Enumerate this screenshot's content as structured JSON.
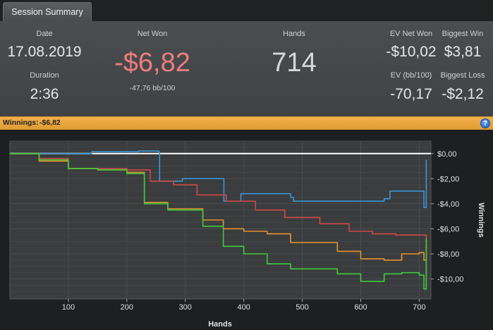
{
  "tab": {
    "label": "Session Summary"
  },
  "summary": {
    "date_label": "Date",
    "date_value": "17.08.2019",
    "duration_label": "Duration",
    "duration_value": "2:36",
    "net_won_label": "Net Won",
    "net_won_value": "-$6,82",
    "net_won_sub": "-47,76 bb/100",
    "hands_label": "Hands",
    "hands_value": "714",
    "ev_net_won_label": "EV Net Won",
    "ev_net_won_value": "-$10,02",
    "biggest_win_label": "Biggest Win",
    "biggest_win_value": "$3,81",
    "ev_bb_label": "EV (bb/100)",
    "ev_bb_value": "-70,17",
    "biggest_loss_label": "Biggest Loss",
    "biggest_loss_value": "-$2,12"
  },
  "winnings_bar": {
    "label": "Winnings:",
    "value": "-$6,82",
    "help_icon": "?"
  },
  "colors": {
    "net_won": "#f07c7c",
    "blue": "#3a96d8",
    "red": "#d24848",
    "orange": "#e8922e",
    "green": "#3ecb3e",
    "zero_line": "#ffffff"
  },
  "chart_data": {
    "type": "line",
    "xlabel": "Hands",
    "ylabel": "Winnings",
    "xlim": [
      0,
      720
    ],
    "ylim": [
      -11.6,
      1.0
    ],
    "x_ticks": [
      100,
      200,
      300,
      400,
      500,
      600,
      700
    ],
    "x_tick_labels": [
      "100",
      "200",
      "300",
      "400",
      "500",
      "600",
      "700"
    ],
    "y_ticks": [
      0,
      -2,
      -4,
      -6,
      -8,
      -10
    ],
    "y_tick_labels": [
      "$0,00",
      "-$2,00",
      "-$4,00",
      "-$6,00",
      "-$8,00",
      "-$10,00"
    ],
    "grid": true,
    "series": [
      {
        "color": "blue",
        "values": [
          [
            0,
            0.0
          ],
          [
            130,
            0.0
          ],
          [
            140,
            0.15
          ],
          [
            220,
            0.2
          ],
          [
            255,
            0.1
          ],
          [
            256,
            -2.2
          ],
          [
            295,
            -2.0
          ],
          [
            360,
            -2.0
          ],
          [
            366,
            -3.8
          ],
          [
            395,
            -3.2
          ],
          [
            480,
            -3.5
          ],
          [
            485,
            -3.8
          ],
          [
            640,
            -3.6
          ],
          [
            650,
            -3.0
          ],
          [
            700,
            -3.0
          ],
          [
            708,
            -4.3
          ],
          [
            712,
            -0.5
          ]
        ]
      },
      {
        "color": "red",
        "values": [
          [
            0,
            0.0
          ],
          [
            50,
            -0.4
          ],
          [
            100,
            -1.2
          ],
          [
            150,
            -1.2
          ],
          [
            200,
            -1.3
          ],
          [
            240,
            -2.2
          ],
          [
            280,
            -2.5
          ],
          [
            320,
            -3.3
          ],
          [
            370,
            -3.8
          ],
          [
            420,
            -4.5
          ],
          [
            470,
            -5.1
          ],
          [
            530,
            -5.6
          ],
          [
            580,
            -6.2
          ],
          [
            620,
            -6.4
          ],
          [
            660,
            -6.5
          ],
          [
            712,
            -6.8
          ]
        ]
      },
      {
        "color": "orange",
        "values": [
          [
            0,
            0.0
          ],
          [
            50,
            -0.6
          ],
          [
            100,
            -1.2
          ],
          [
            150,
            -1.3
          ],
          [
            200,
            -1.5
          ],
          [
            230,
            -3.9
          ],
          [
            270,
            -4.4
          ],
          [
            330,
            -5.3
          ],
          [
            365,
            -6.0
          ],
          [
            400,
            -6.2
          ],
          [
            440,
            -6.4
          ],
          [
            480,
            -7.1
          ],
          [
            560,
            -7.8
          ],
          [
            600,
            -8.4
          ],
          [
            640,
            -8.5
          ],
          [
            670,
            -8.0
          ],
          [
            700,
            -7.9
          ],
          [
            708,
            -8.5
          ],
          [
            712,
            -6.8
          ]
        ]
      },
      {
        "color": "green",
        "values": [
          [
            0,
            0.0
          ],
          [
            50,
            -0.5
          ],
          [
            100,
            -1.2
          ],
          [
            150,
            -1.3
          ],
          [
            200,
            -1.6
          ],
          [
            230,
            -4.0
          ],
          [
            270,
            -4.5
          ],
          [
            330,
            -5.8
          ],
          [
            365,
            -7.4
          ],
          [
            400,
            -8.0
          ],
          [
            440,
            -8.8
          ],
          [
            480,
            -9.2
          ],
          [
            560,
            -9.6
          ],
          [
            600,
            -10.2
          ],
          [
            640,
            -9.6
          ],
          [
            670,
            -9.5
          ],
          [
            700,
            -9.7
          ],
          [
            708,
            -10.8
          ],
          [
            712,
            -6.8
          ]
        ]
      }
    ]
  }
}
